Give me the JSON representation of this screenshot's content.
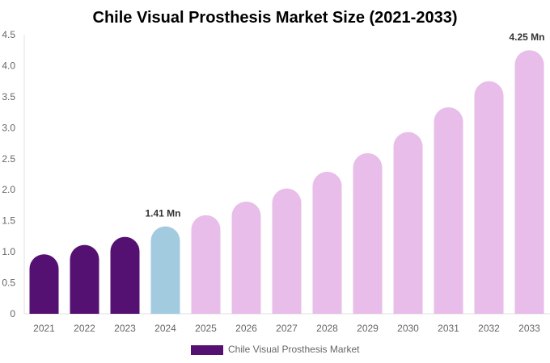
{
  "chart_data": {
    "type": "bar",
    "title": "Chile Visual Prosthesis Market Size (2021-2033)",
    "categories": [
      "2021",
      "2022",
      "2023",
      "2024",
      "2025",
      "2026",
      "2027",
      "2028",
      "2029",
      "2030",
      "2031",
      "2032",
      "2033"
    ],
    "series": [
      {
        "name": "Chile Visual Prosthesis Market",
        "values": [
          0.96,
          1.11,
          1.24,
          1.41,
          1.59,
          1.81,
          2.02,
          2.29,
          2.59,
          2.93,
          3.33,
          3.75,
          4.25
        ]
      }
    ],
    "data_labels": {
      "2024": "1.41 Mn",
      "2033": "4.25 Mn"
    },
    "yticks": [
      "0",
      "0.5",
      "1.0",
      "1.5",
      "2.0",
      "2.5",
      "3.0",
      "3.5",
      "4.0",
      "4.5"
    ],
    "ylim": [
      0,
      4.5
    ],
    "grid": false,
    "legend_position": "bottom",
    "colors": {
      "historical": "#541171",
      "current": "#a3cbe0",
      "forecast": "#e8bde9"
    }
  }
}
